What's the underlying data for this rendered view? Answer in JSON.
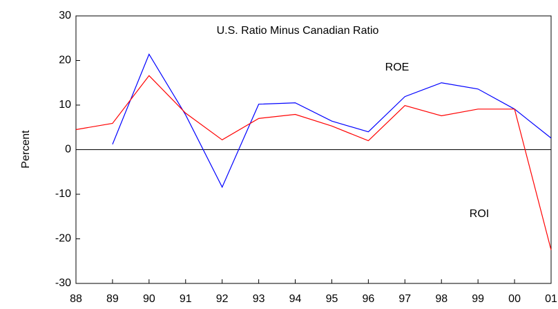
{
  "chart_data": {
    "type": "line",
    "title": "U.S. Ratio Minus Canadian Ratio",
    "y_label": "Percent",
    "categories": [
      "88",
      "89",
      "90",
      "91",
      "92",
      "93",
      "94",
      "95",
      "96",
      "97",
      "98",
      "99",
      "00",
      "01"
    ],
    "series": [
      {
        "name": "ROE",
        "color": "#0000ff",
        "values": [
          null,
          1.2,
          21.4,
          7.8,
          -8.4,
          10.2,
          10.5,
          6.4,
          4.0,
          11.9,
          15.0,
          13.6,
          9.1,
          2.6
        ]
      },
      {
        "name": "ROI",
        "color": "#ff0000",
        "values": [
          4.5,
          5.9,
          16.6,
          8.2,
          2.2,
          7.0,
          7.9,
          5.3,
          2.0,
          9.9,
          7.6,
          9.1,
          9.1,
          -22.5
        ]
      }
    ],
    "ylim": [
      -30,
      30
    ],
    "yticks": [
      -30,
      -20,
      -10,
      0,
      10,
      20,
      30
    ],
    "zero_line": true
  }
}
